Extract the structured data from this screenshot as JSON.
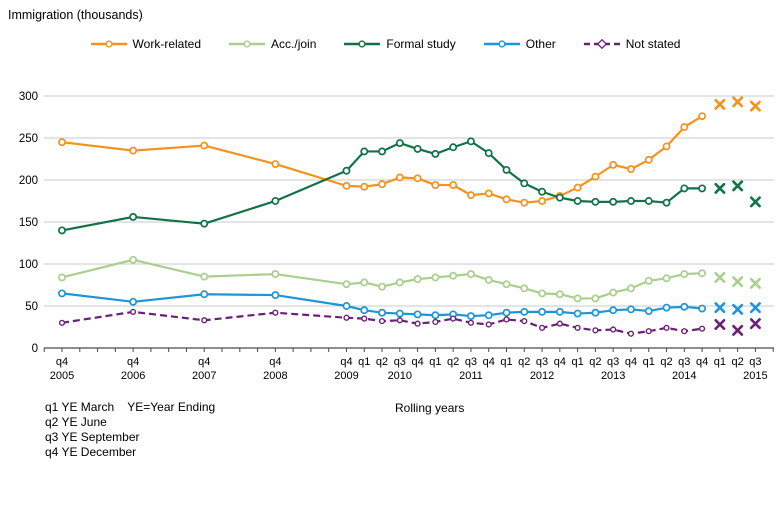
{
  "page": {
    "title": "Immigration (thousands)",
    "footnotes": [
      "q1 YE March    YE=Year Ending",
      "q2 YE June",
      "q3 YE September",
      "q4 YE December"
    ],
    "footnote_right": "Rolling years"
  },
  "colors": {
    "grid": "#C9C9C9",
    "axis": "#4A4A4A",
    "text": "#000000"
  },
  "chart_data": {
    "type": "line",
    "title": "Immigration (thousands)",
    "ylabel": "Immigration (thousands)",
    "ylim": [
      0,
      300
    ],
    "yticks": [
      0,
      50,
      100,
      150,
      200,
      250,
      300
    ],
    "grid": "horizontal",
    "legend_position": "top",
    "x_note": "Rolling years (year ending quarters); annual q4 points 2005-2008, quarterly from q4 2009; last three points are provisional and drawn as x markers without connecting line",
    "provisional_last_n": 3,
    "provisional_marker": "x",
    "x_labels": [
      "q4 2005",
      "q4 2006",
      "q4 2007",
      "q4 2008",
      "q4 2009",
      "q1 2010",
      "q2 2010",
      "q3 2010",
      "q4 2010",
      "q1 2011",
      "q2 2011",
      "q3 2011",
      "q4 2011",
      "q1 2012",
      "q2 2012",
      "q3 2012",
      "q4 2012",
      "q1 2013",
      "q2 2013",
      "q3 2013",
      "q4 2013",
      "q1 2014",
      "q2 2014",
      "q3 2014",
      "q4 2014",
      "q1 2015",
      "q2 2015",
      "q3 2015"
    ],
    "x_offsets": [
      0,
      4,
      8,
      12,
      16,
      17,
      18,
      19,
      20,
      21,
      22,
      23,
      24,
      25,
      26,
      27,
      28,
      29,
      30,
      31,
      32,
      33,
      34,
      35,
      36,
      37,
      38,
      39
    ],
    "year_labels": [
      [
        "2005",
        0
      ],
      [
        "2006",
        4
      ],
      [
        "2007",
        8
      ],
      [
        "2008",
        12
      ],
      [
        "2009",
        16
      ],
      [
        "2010",
        19
      ],
      [
        "2011",
        23
      ],
      [
        "2012",
        27
      ],
      [
        "2013",
        31
      ],
      [
        "2014",
        35
      ],
      [
        "2015",
        39
      ]
    ],
    "series": [
      {
        "name": "Work-related",
        "color": "#F5921E",
        "marker": "circle",
        "dash": null,
        "values": [
          245,
          235,
          241,
          219,
          193,
          192,
          195,
          203,
          202,
          194,
          194,
          182,
          184,
          177,
          173,
          175,
          181,
          191,
          204,
          218,
          213,
          224,
          240,
          263,
          276,
          290,
          293,
          288
        ]
      },
      {
        "name": "Acc./join",
        "color": "#A9CF8E",
        "marker": "circle",
        "dash": null,
        "values": [
          84,
          105,
          85,
          88,
          76,
          78,
          73,
          78,
          82,
          84,
          86,
          88,
          81,
          76,
          71,
          65,
          64,
          59,
          59,
          66,
          71,
          80,
          83,
          88,
          89,
          84,
          79,
          77
        ]
      },
      {
        "name": "Formal study",
        "color": "#117245",
        "marker": "circle",
        "dash": null,
        "values": [
          140,
          156,
          148,
          175,
          211,
          234,
          234,
          244,
          237,
          231,
          239,
          246,
          232,
          212,
          196,
          186,
          179,
          175,
          174,
          174,
          175,
          175,
          173,
          190,
          190,
          190,
          193,
          174
        ]
      },
      {
        "name": "Other",
        "color": "#1E95D6",
        "marker": "circle",
        "dash": null,
        "values": [
          65,
          55,
          64,
          63,
          50,
          45,
          42,
          41,
          40,
          39,
          40,
          38,
          39,
          42,
          43,
          43,
          43,
          41,
          42,
          45,
          46,
          44,
          48,
          49,
          47,
          48,
          46,
          48
        ]
      },
      {
        "name": "Not stated",
        "color": "#6A2077",
        "marker": "diamond",
        "dash": "7 4",
        "values": [
          30,
          43,
          33,
          42,
          36,
          35,
          32,
          33,
          29,
          31,
          35,
          30,
          28,
          34,
          32,
          24,
          29,
          24,
          21,
          22,
          17,
          20,
          24,
          20,
          23,
          28,
          21,
          29
        ]
      }
    ]
  }
}
